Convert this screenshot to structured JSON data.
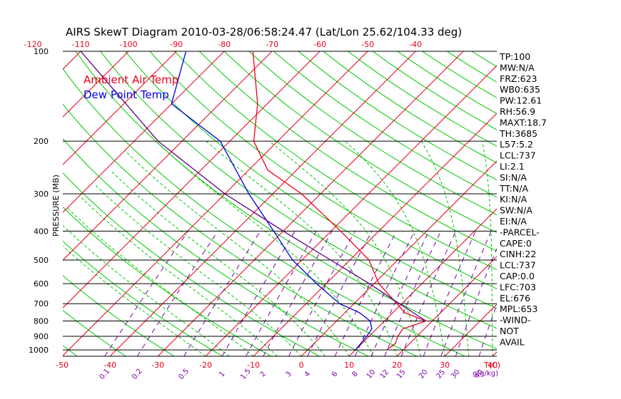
{
  "chart_data": {
    "type": "line",
    "title": "AIRS SkewT Diagram 2010-03-28/06:58:24.47 (Lat/Lon 25.62/104.33 deg)",
    "ylabel": "PRESSURE (MB)",
    "top_axis_ticks": [
      "-120",
      "-110",
      "-100",
      "-90",
      "-80",
      "-70",
      "-60",
      "-50",
      "-40"
    ],
    "top_axis_values": [
      -120,
      -110,
      -100,
      -90,
      -80,
      -70,
      -60,
      -50,
      -40
    ],
    "bottom_axis_ticks": [
      "-50",
      "-40",
      "-30",
      "-20",
      "-10",
      "0",
      "10",
      "20",
      "30",
      "40"
    ],
    "bottom_axis_values": [
      -50,
      -40,
      -30,
      -20,
      -10,
      0,
      10,
      20,
      30,
      40
    ],
    "bottom_axis_unit": "T(C)",
    "mixing_ratio_ticks": [
      "0.1",
      "0.2",
      "0.5",
      "1",
      "1.5",
      "2",
      "3",
      "4",
      "6",
      "8",
      "10",
      "12",
      "15",
      "20",
      "25",
      "30",
      "40"
    ],
    "mixing_ratio_unit": "g(g/kg)",
    "pressure_ticks": [
      "100",
      "200",
      "300",
      "400",
      "500",
      "600",
      "700",
      "800",
      "900",
      "1000"
    ],
    "pressure_values": [
      100,
      200,
      300,
      400,
      500,
      600,
      700,
      800,
      900,
      1000
    ],
    "ylim": [
      1050,
      100
    ],
    "legend": [
      "Ambient Air Temp",
      "Dew Point Temp"
    ],
    "series": [
      {
        "name": "Ambient Air Temp",
        "color": "#e8001c",
        "points": [
          {
            "p": 1000,
            "t": 16.5
          },
          {
            "p": 950,
            "t": 17.0
          },
          {
            "p": 900,
            "t": 16.0
          },
          {
            "p": 850,
            "t": 15.5
          },
          {
            "p": 800,
            "t": 18.7
          },
          {
            "p": 750,
            "t": 12.5
          },
          {
            "p": 700,
            "t": 9.0
          },
          {
            "p": 600,
            "t": 1.0
          },
          {
            "p": 500,
            "t": -6.0
          },
          {
            "p": 400,
            "t": -18.0
          },
          {
            "p": 300,
            "t": -34.0
          },
          {
            "p": 250,
            "t": -46.0
          },
          {
            "p": 200,
            "t": -55.0
          },
          {
            "p": 150,
            "t": -62.0
          },
          {
            "p": 100,
            "t": -74.0
          }
        ]
      },
      {
        "name": "Dew Point Temp",
        "color": "#0000e0",
        "points": [
          {
            "p": 1000,
            "t": 10.0
          },
          {
            "p": 900,
            "t": 9.5
          },
          {
            "p": 850,
            "t": 9.0
          },
          {
            "p": 800,
            "t": 7.0
          },
          {
            "p": 750,
            "t": 3.0
          },
          {
            "p": 700,
            "t": -3.0
          },
          {
            "p": 600,
            "t": -12.0
          },
          {
            "p": 500,
            "t": -22.0
          },
          {
            "p": 400,
            "t": -32.0
          },
          {
            "p": 300,
            "t": -45.0
          },
          {
            "p": 200,
            "t": -62.0
          },
          {
            "p": 150,
            "t": -80.0
          },
          {
            "p": 100,
            "t": -88.0
          }
        ]
      },
      {
        "name": "",
        "color": "#5a007f",
        "points": [
          {
            "p": 800,
            "t": 18.7
          },
          {
            "p": 700,
            "t": 9.5
          },
          {
            "p": 600,
            "t": -1.0
          },
          {
            "p": 500,
            "t": -14.0
          },
          {
            "p": 400,
            "t": -30.0
          },
          {
            "p": 300,
            "t": -50.0
          },
          {
            "p": 200,
            "t": -75.0
          },
          {
            "p": 100,
            "t": -110.0
          }
        ]
      }
    ],
    "indices": [
      "TP:100",
      "MW:N/A",
      "FRZ:623",
      "WB0:635",
      "PW:12.61",
      "RH:56.9",
      "MAXT:18.7",
      "TH:3685",
      "L57:5.2",
      "LCL:737",
      "LI:2.1",
      "SI:N/A",
      "TT:N/A",
      "KI:N/A",
      "SW:N/A",
      "EI:N/A",
      "-PARCEL-",
      "CAPE:0",
      "CINH:22",
      "LCL:737",
      "CAP:0.0",
      "LFC:703",
      "EL:676",
      "MPL:653",
      "-WIND-",
      "NOT",
      "AVAIL"
    ],
    "colors": {
      "isotherm": "#e8001c",
      "dry_adiabat": "#00c800",
      "moist_adiabat": "#00c800",
      "mixing_ratio": "#7b00a8",
      "isobar": "#000000"
    }
  }
}
